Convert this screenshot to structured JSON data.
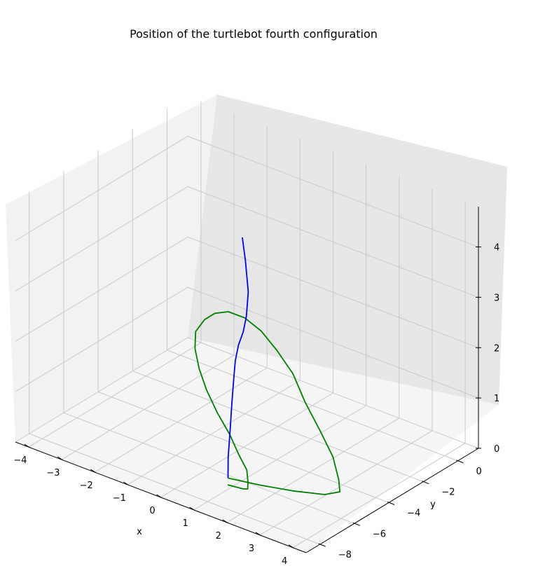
{
  "chart_data": {
    "type": "line3d",
    "title": "Position of the turtlebot fourth configuration",
    "xlabel": "x",
    "ylabel": "y",
    "zlabel": "",
    "x_ticks": [
      "−4",
      "−3",
      "−2",
      "−1",
      "0",
      "1",
      "2",
      "3",
      "4"
    ],
    "y_ticks": [
      "−8",
      "−6",
      "−4",
      "−2",
      "0"
    ],
    "z_ticks": [
      "0",
      "1",
      "2",
      "3",
      "4"
    ],
    "grid": true,
    "series": [
      {
        "color": "#008000",
        "points": [
          [
            1.2,
            -7.2,
            0.35
          ],
          [
            2.0,
            -6.9,
            0.35
          ],
          [
            2.8,
            -6.5,
            0.35
          ],
          [
            3.5,
            -6.0,
            0.35
          ],
          [
            3.7,
            -5.5,
            0.35
          ],
          [
            3.3,
            -4.8,
            0.35
          ],
          [
            2.5,
            -3.6,
            0.35
          ],
          [
            1.5,
            -2.4,
            0.35
          ],
          [
            0.3,
            -1.0,
            0.35
          ],
          [
            -0.8,
            0.4,
            0.35
          ],
          [
            -1.8,
            1.4,
            0.35
          ],
          [
            -2.7,
            2.2,
            0.35
          ],
          [
            -3.4,
            2.6,
            0.35
          ],
          [
            -3.9,
            2.6,
            0.35
          ],
          [
            -4.1,
            2.2,
            0.35
          ],
          [
            -4.1,
            1.6,
            0.35
          ],
          [
            -3.9,
            0.7,
            0.35
          ],
          [
            -3.4,
            -0.3,
            0.35
          ],
          [
            -2.7,
            -1.4,
            0.35
          ],
          [
            -1.9,
            -2.5,
            0.35
          ],
          [
            -1.0,
            -3.6,
            0.35
          ],
          [
            -0.1,
            -4.6,
            0.35
          ],
          [
            0.7,
            -5.6,
            0.35
          ],
          [
            1.3,
            -6.3,
            0.35
          ],
          [
            1.7,
            -7.0,
            0.35
          ],
          [
            1.9,
            -7.4,
            0.35
          ],
          [
            1.8,
            -7.5,
            0.35
          ],
          [
            1.4,
            -7.6,
            0.35
          ]
        ]
      },
      {
        "color": "#0000ff",
        "points": [
          [
            1.2,
            -7.2,
            0.35
          ],
          [
            1.1,
            -7.0,
            0.7
          ],
          [
            1.0,
            -6.7,
            1.1
          ],
          [
            0.9,
            -6.4,
            1.6
          ],
          [
            0.85,
            -6.2,
            2.0
          ],
          [
            0.9,
            -6.2,
            2.4
          ],
          [
            1.1,
            -6.4,
            2.8
          ],
          [
            1.4,
            -6.7,
            3.2
          ],
          [
            1.6,
            -6.9,
            3.6
          ],
          [
            1.5,
            -6.6,
            4.0
          ],
          [
            1.1,
            -6.0,
            4.4
          ],
          [
            0.8,
            -5.6,
            4.7
          ]
        ]
      }
    ]
  }
}
